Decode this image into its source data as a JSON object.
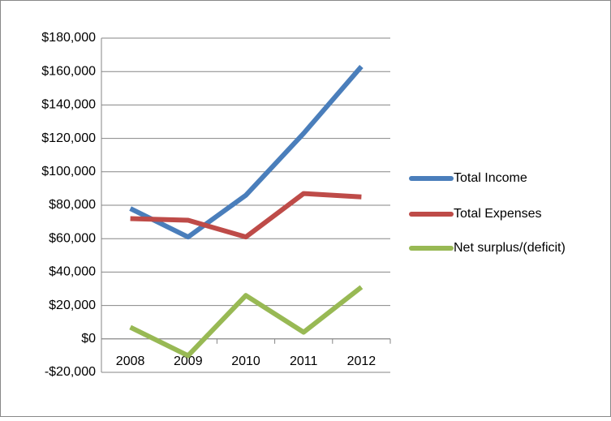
{
  "chart_data": {
    "type": "line",
    "categories": [
      "2008",
      "2009",
      "2010",
      "2011",
      "2012"
    ],
    "series": [
      {
        "name": "Total Income",
        "color": "#4a7ebb",
        "values": [
          78000,
          61000,
          86000,
          123000,
          163000
        ]
      },
      {
        "name": "Total Expenses",
        "color": "#be4b48",
        "values": [
          72000,
          71000,
          61000,
          87000,
          85000
        ]
      },
      {
        "name": "Net surplus/(deficit)",
        "color": "#98b954",
        "values": [
          7000,
          -10000,
          26000,
          4000,
          31000
        ]
      }
    ],
    "ylim": [
      -20000,
      180000
    ],
    "yticks": [
      {
        "value": -20000,
        "label": "-$20,000"
      },
      {
        "value": 0,
        "label": "$0"
      },
      {
        "value": 20000,
        "label": "$20,000"
      },
      {
        "value": 40000,
        "label": "$40,000"
      },
      {
        "value": 60000,
        "label": "$60,000"
      },
      {
        "value": 80000,
        "label": "$80,000"
      },
      {
        "value": 100000,
        "label": "$100,000"
      },
      {
        "value": 120000,
        "label": "$120,000"
      },
      {
        "value": 140000,
        "label": "$140,000"
      },
      {
        "value": 160000,
        "label": "$160,000"
      },
      {
        "value": 180000,
        "label": "$180,000"
      }
    ],
    "grid": true,
    "legend": "right"
  }
}
